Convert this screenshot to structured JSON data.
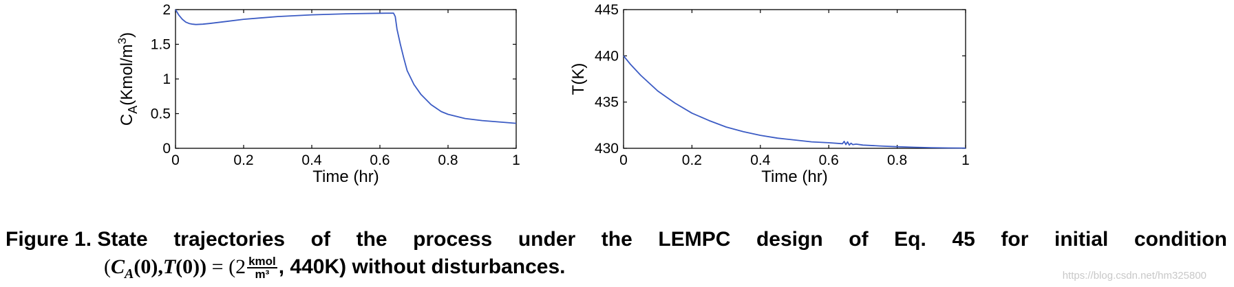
{
  "chart_data": [
    {
      "type": "line",
      "title": "",
      "xlabel": "Time (hr)",
      "ylabel_main": "C",
      "ylabel_sub": "A",
      "ylabel_rest": "(Kmol/m",
      "ylabel_sup": "3",
      "ylabel_close": ")",
      "xlim": [
        0,
        1
      ],
      "ylim": [
        0,
        2
      ],
      "xticks": [
        0,
        0.2,
        0.4,
        0.6,
        0.8,
        1
      ],
      "xtick_labels": [
        "0",
        "0.2",
        "0.4",
        "0.6",
        "0.8",
        "1"
      ],
      "yticks": [
        0,
        0.5,
        1,
        1.5,
        2
      ],
      "ytick_labels": [
        "0",
        "0.5",
        "1",
        "1.5",
        "2"
      ],
      "grid": false,
      "color": "#3b5bc4",
      "series": [
        {
          "x": [
            0,
            0.01,
            0.02,
            0.03,
            0.04,
            0.05,
            0.06,
            0.08,
            0.1,
            0.15,
            0.2,
            0.3,
            0.4,
            0.5,
            0.6,
            0.64,
            0.645,
            0.65,
            0.66,
            0.67,
            0.68,
            0.7,
            0.72,
            0.75,
            0.78,
            0.8,
            0.85,
            0.9,
            0.95,
            1.0
          ],
          "y": [
            2.0,
            1.92,
            1.86,
            1.82,
            1.8,
            1.79,
            1.785,
            1.79,
            1.8,
            1.83,
            1.86,
            1.9,
            1.925,
            1.94,
            1.948,
            1.95,
            1.9,
            1.72,
            1.5,
            1.3,
            1.12,
            0.92,
            0.78,
            0.63,
            0.53,
            0.49,
            0.43,
            0.4,
            0.38,
            0.36
          ]
        }
      ]
    },
    {
      "type": "line",
      "title": "",
      "xlabel": "Time (hr)",
      "ylabel": "T(K)",
      "xlim": [
        0,
        1
      ],
      "ylim": [
        430,
        445
      ],
      "xticks": [
        0,
        0.2,
        0.4,
        0.6,
        0.8,
        1
      ],
      "xtick_labels": [
        "0",
        "0.2",
        "0.4",
        "0.6",
        "0.8",
        "1"
      ],
      "yticks": [
        430,
        435,
        440,
        445
      ],
      "ytick_labels": [
        "430",
        "435",
        "440",
        "445"
      ],
      "grid": false,
      "color": "#3b5bc4",
      "series": [
        {
          "x": [
            0,
            0.02,
            0.05,
            0.1,
            0.15,
            0.2,
            0.25,
            0.3,
            0.35,
            0.4,
            0.45,
            0.5,
            0.55,
            0.6,
            0.64,
            0.645,
            0.65,
            0.655,
            0.66,
            0.665,
            0.67,
            0.68,
            0.7,
            0.75,
            0.8,
            0.85,
            0.9,
            0.95,
            1.0
          ],
          "y": [
            440,
            439.1,
            437.9,
            436.2,
            434.9,
            433.8,
            433.0,
            432.3,
            431.8,
            431.4,
            431.1,
            430.9,
            430.7,
            430.6,
            430.5,
            430.75,
            430.4,
            430.7,
            430.35,
            430.55,
            430.4,
            430.45,
            430.35,
            430.25,
            430.17,
            430.11,
            430.07,
            430.04,
            430.02
          ]
        }
      ]
    }
  ],
  "caption": {
    "words": [
      "Figure 1. State",
      "trajectories",
      "of",
      "the",
      "process",
      "under",
      "the",
      "LEMPC",
      "design",
      "of",
      "Eq.",
      "45",
      "for",
      "initial",
      "condition"
    ],
    "line2_open": "(",
    "line2_ca": "C",
    "line2_ca_sub": "A",
    "line2_ca_arg": "(0),",
    "line2_t": "T",
    "line2_t_arg": "(0))",
    "line2_eq": " = (2",
    "frac_num": "kmol",
    "frac_den": "m³",
    "line2_rest": ", 440K)",
    "line2_tail": " without disturbances."
  },
  "watermark": "https://blog.csdn.net/hm325800"
}
